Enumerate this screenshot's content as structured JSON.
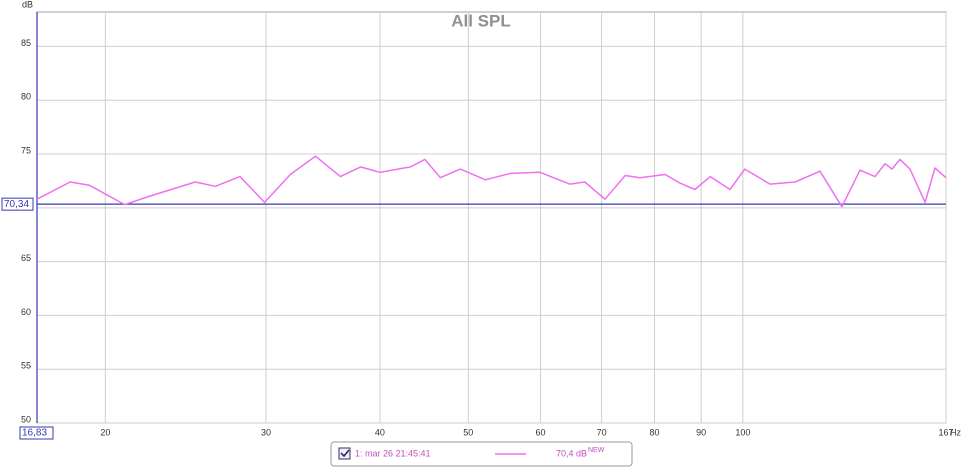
{
  "chart_data": {
    "type": "line",
    "title": "All SPL",
    "y_unit": "dB",
    "x_unit": "Hz",
    "log_x": true,
    "grid": true,
    "xlim": [
      16.83,
      167
    ],
    "ylim": [
      50,
      88.2
    ],
    "xticks": [
      20,
      30,
      40,
      50,
      60,
      70,
      80,
      90,
      100,
      167
    ],
    "yticks": [
      50,
      55,
      60,
      65,
      70,
      75,
      80,
      85
    ],
    "cursor": {
      "x": {
        "value": 16.83,
        "label": "16,83"
      },
      "y": {
        "value": 70.34,
        "label": "70,34"
      },
      "color": "#3838b0"
    },
    "series": [
      {
        "name": "1: mar 26 21:45:41",
        "color": "#f070f0",
        "checked": true,
        "legend_value": "70,4 dB",
        "legend_badge": "NEW",
        "x": [
          16.83,
          18.3,
          19.2,
          21.0,
          22.4,
          25.1,
          26.4,
          28.1,
          29.9,
          31.9,
          34.0,
          36.2,
          38.1,
          40.0,
          43.2,
          44.8,
          46.6,
          49.0,
          52.2,
          55.6,
          59.9,
          64.6,
          67.1,
          70.6,
          74.3,
          77.1,
          82.2,
          85.3,
          88.6,
          92.1,
          96.8,
          100.5,
          107.1,
          114.1,
          121.5,
          128.4,
          134.4,
          139.6,
          143.2,
          145.7,
          148.7,
          152.5,
          158.4,
          162.4,
          167.0
        ],
        "values": [
          70.8,
          72.4,
          72.1,
          70.3,
          71.1,
          72.4,
          72.0,
          72.9,
          70.5,
          73.1,
          74.8,
          72.9,
          73.8,
          73.3,
          73.8,
          74.5,
          72.8,
          73.6,
          72.6,
          73.2,
          73.3,
          72.2,
          72.4,
          70.8,
          73.0,
          72.8,
          73.1,
          72.3,
          71.7,
          72.9,
          71.7,
          73.6,
          72.2,
          72.4,
          73.4,
          70.1,
          73.5,
          72.9,
          74.1,
          73.6,
          74.5,
          73.6,
          70.5,
          73.7,
          72.8
        ]
      }
    ]
  }
}
